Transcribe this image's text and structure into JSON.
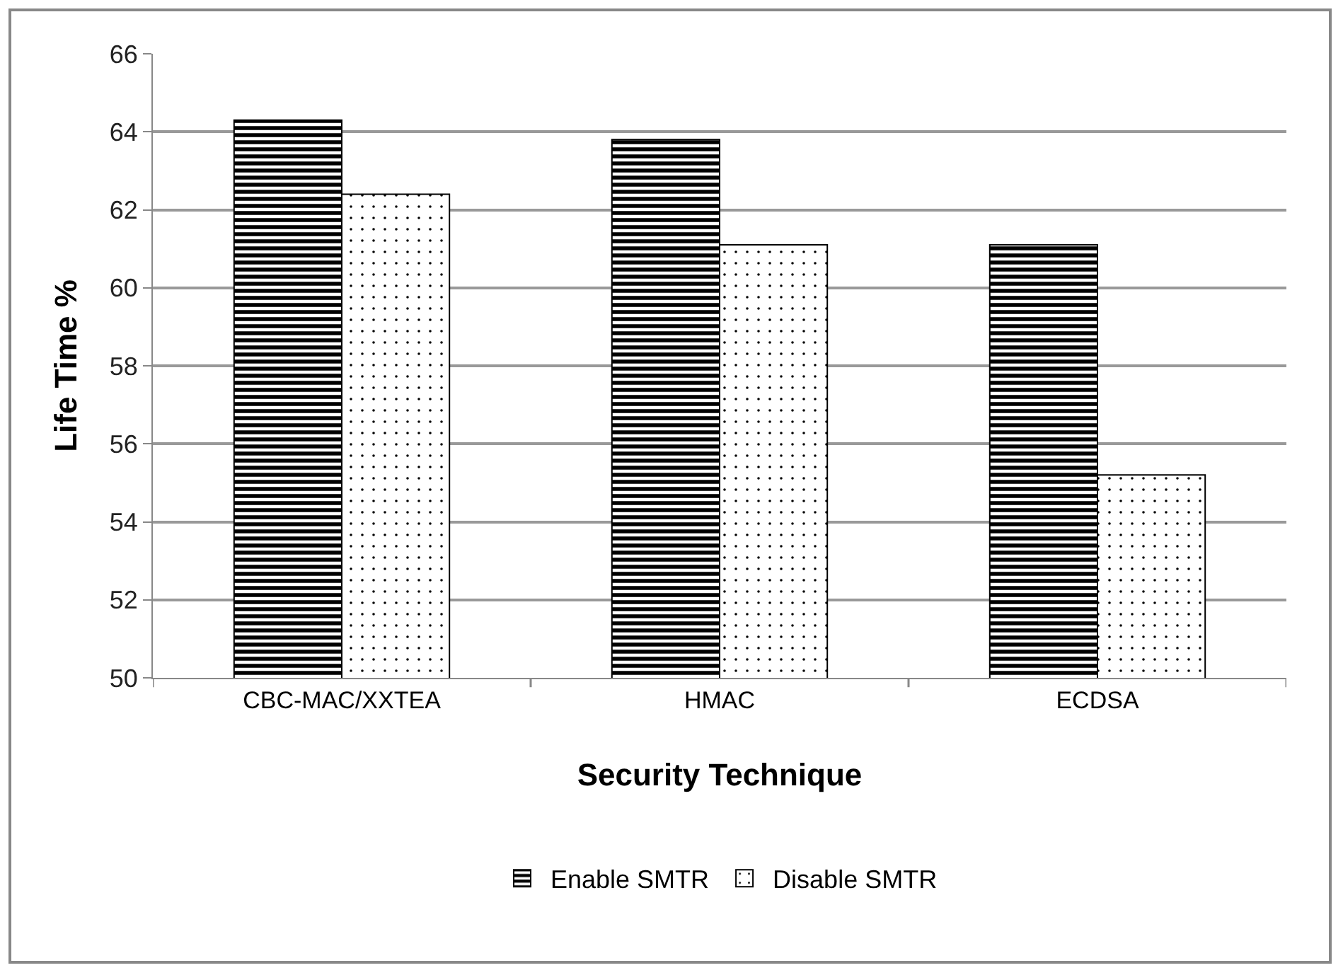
{
  "chart_data": {
    "type": "bar",
    "xlabel": "Security Technique",
    "ylabel": "Life Time %",
    "categories": [
      "CBC-MAC/XXTEA",
      "HMAC",
      "ECDSA"
    ],
    "series": [
      {
        "name": "Enable SMTR",
        "color": "#000000",
        "values": [
          64.3,
          63.8,
          61.1
        ]
      },
      {
        "name": "Disable SMTR",
        "color": "#000000",
        "values": [
          62.4,
          61.1,
          55.2
        ]
      }
    ],
    "ylim": [
      50,
      66
    ],
    "yticks": [
      50,
      52,
      54,
      56,
      58,
      60,
      62,
      64,
      66
    ],
    "grid": "y",
    "legend": "bottom"
  }
}
